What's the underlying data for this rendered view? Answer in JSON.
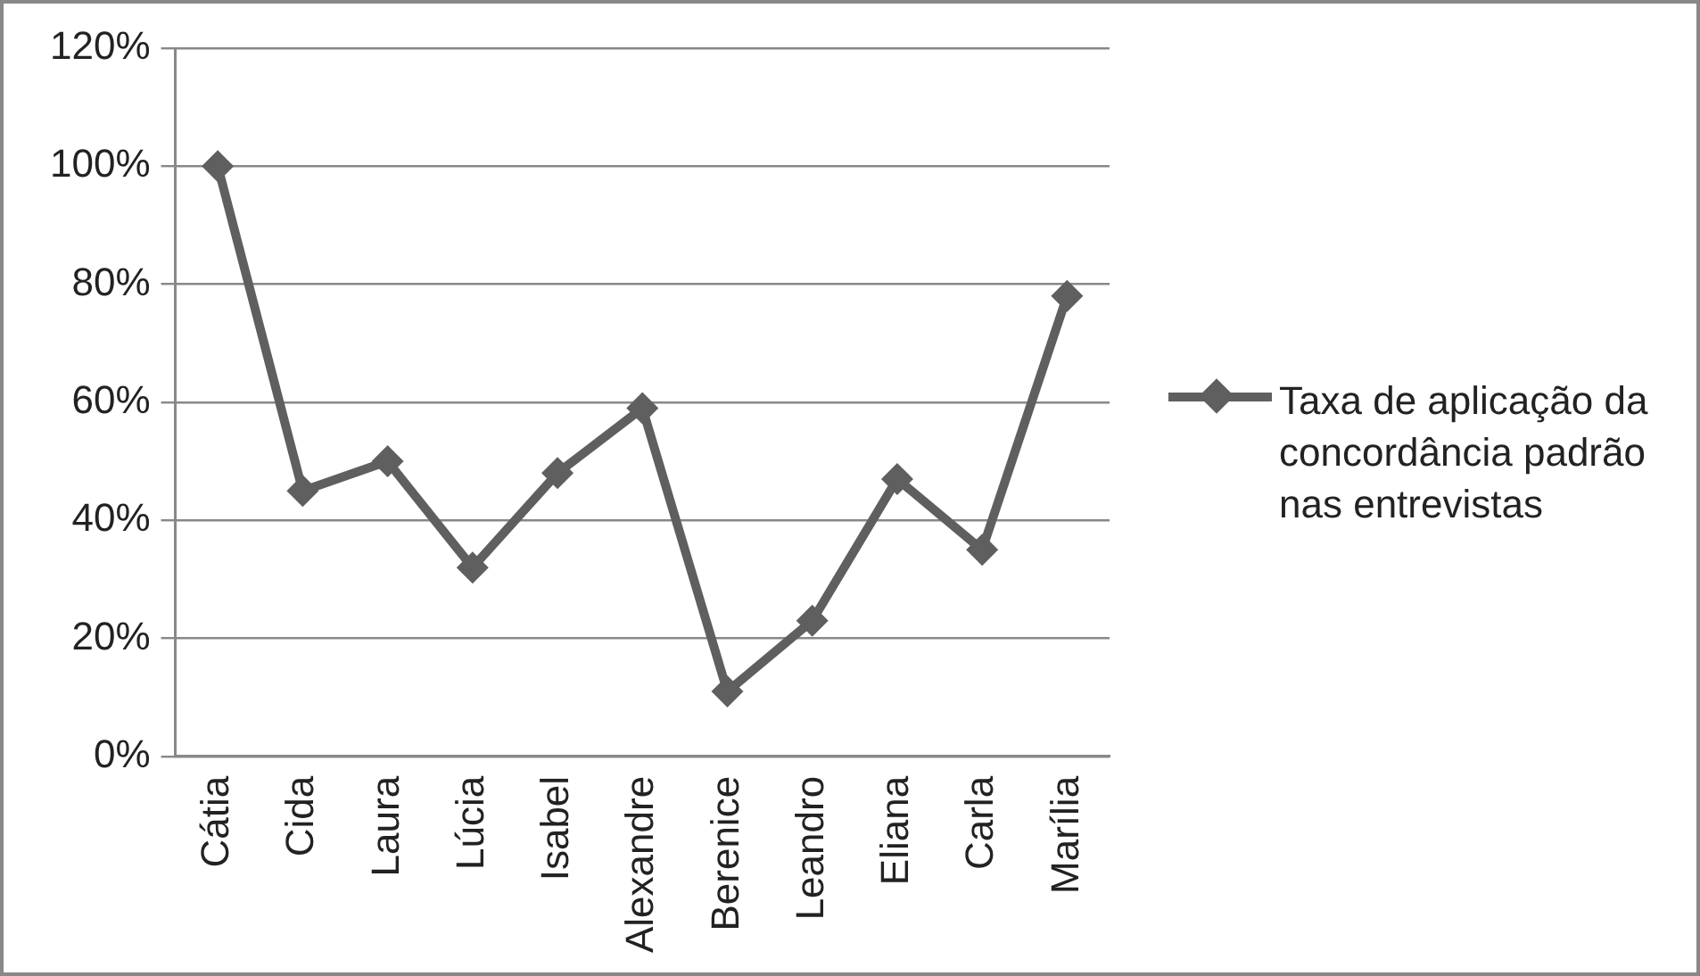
{
  "chart_data": {
    "type": "line",
    "categories": [
      "Cátia",
      "Cida",
      "Laura",
      "Lúcia",
      "Isabel",
      "Alexandre",
      "Berenice",
      "Leandro",
      "Eliana",
      "Carla",
      "Marília"
    ],
    "series": [
      {
        "name": "Taxa de aplicação da concordância padrão nas entrevistas",
        "color": "#5f5f5f",
        "values": [
          100,
          45,
          50,
          32,
          48,
          59,
          11,
          23,
          47,
          35,
          78
        ]
      }
    ],
    "ylim": [
      0,
      120
    ],
    "yticks": [
      {
        "value": 0,
        "label": "0%"
      },
      {
        "value": 20,
        "label": "20%"
      },
      {
        "value": 40,
        "label": "40%"
      },
      {
        "value": 60,
        "label": "60%"
      },
      {
        "value": 80,
        "label": "80%"
      },
      {
        "value": 100,
        "label": "100%"
      },
      {
        "value": 120,
        "label": "120%"
      }
    ],
    "grid": "y",
    "legend": "right",
    "marker": "diamond",
    "line_style": "solid"
  }
}
